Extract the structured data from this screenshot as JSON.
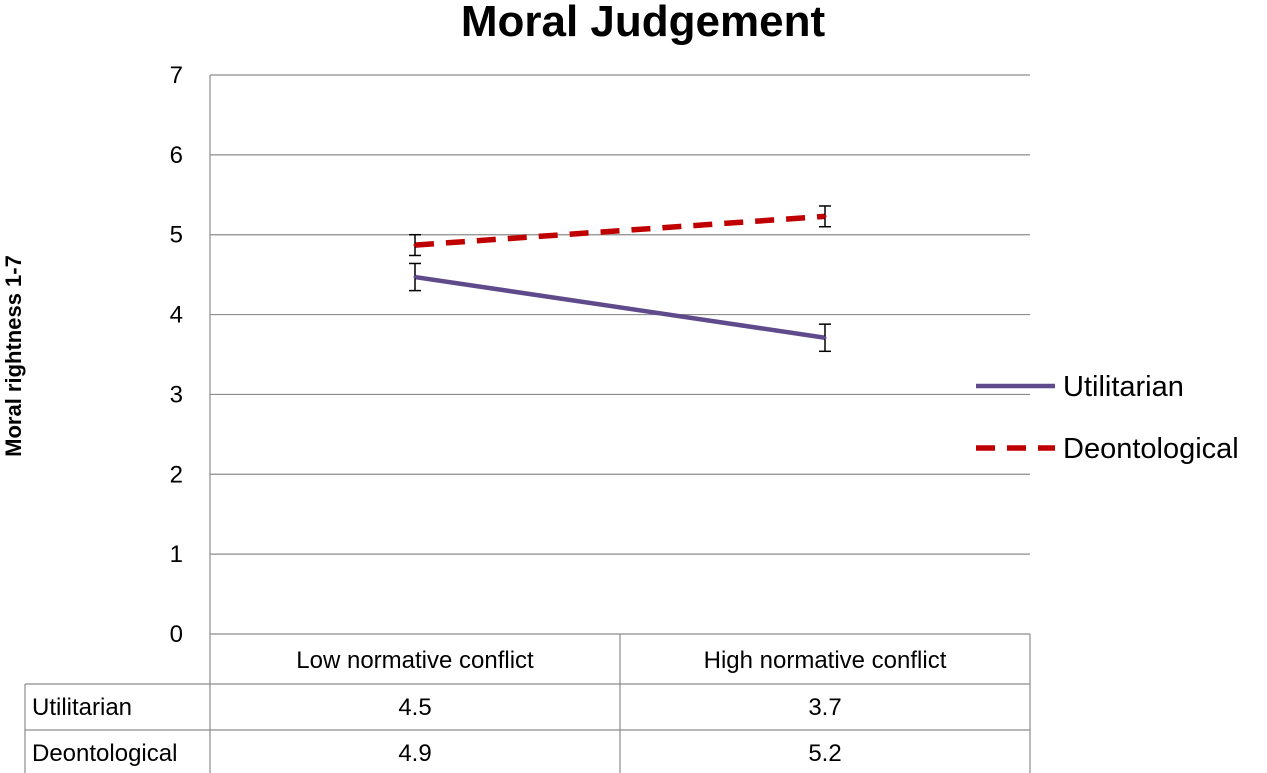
{
  "chart_data": {
    "type": "line",
    "title": "Moral Judgement",
    "xlabel": "",
    "ylabel": "Moral rightness 1-7",
    "ylim": [
      0,
      7
    ],
    "yticks": [
      0,
      1,
      2,
      3,
      4,
      5,
      6,
      7
    ],
    "grid": true,
    "legend_position": "right",
    "categories": [
      "Low normative conflict",
      "High normative conflict"
    ],
    "series": [
      {
        "name": "Utilitarian",
        "values": [
          4.5,
          3.7
        ],
        "plotted_values": [
          4.47,
          3.71
        ],
        "error": [
          0.17,
          0.17
        ],
        "color": "#5f4b8b",
        "style": "solid"
      },
      {
        "name": "Deontological",
        "values": [
          4.9,
          5.2
        ],
        "plotted_values": [
          4.87,
          5.23
        ],
        "error": [
          0.13,
          0.13
        ],
        "color": "#c00000",
        "style": "dashed"
      }
    ],
    "table": {
      "row_labels": [
        "Utilitarian",
        "Deontological"
      ],
      "cells": [
        [
          "4.5",
          "3.7"
        ],
        [
          "4.9",
          "5.2"
        ]
      ]
    }
  }
}
